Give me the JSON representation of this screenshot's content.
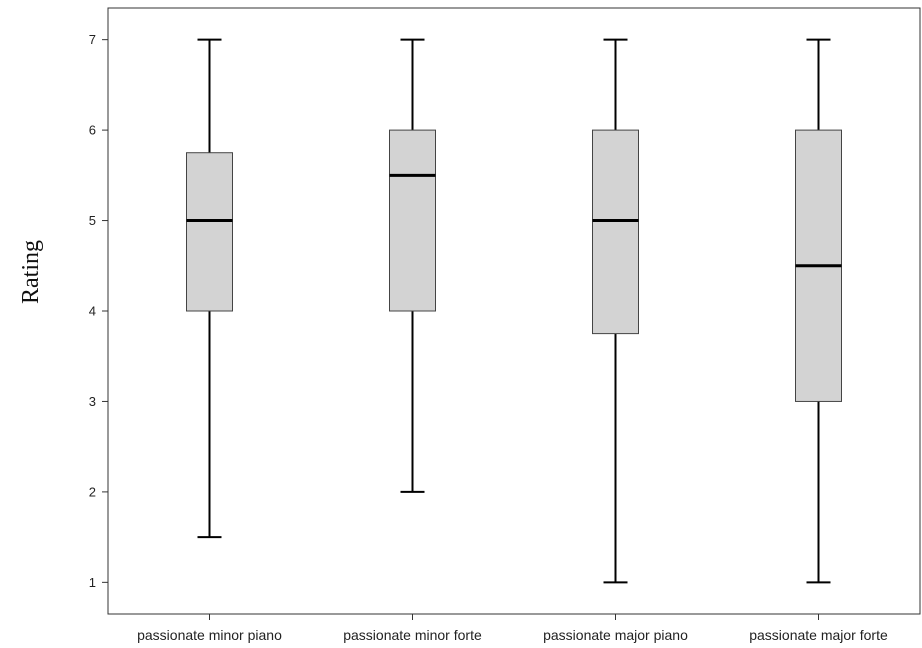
{
  "chart_data": {
    "type": "boxplot",
    "ylabel": "Rating",
    "xlabel": "",
    "ylim": [
      0.65,
      7.35
    ],
    "yticks": [
      1,
      2,
      3,
      4,
      5,
      6,
      7
    ],
    "grid": false,
    "categories": [
      "passionate minor piano",
      "passionate minor forte",
      "passionate major piano",
      "passionate major forte"
    ],
    "boxes": [
      {
        "min": 1.5,
        "q1": 4.0,
        "median": 5.0,
        "q3": 5.75,
        "max": 7
      },
      {
        "min": 2.0,
        "q1": 4.0,
        "median": 5.5,
        "q3": 6.0,
        "max": 7
      },
      {
        "min": 1.0,
        "q1": 3.75,
        "median": 5.0,
        "q3": 6.0,
        "max": 7
      },
      {
        "min": 1.0,
        "q1": 3.0,
        "median": 4.5,
        "q3": 6.0,
        "max": 7
      }
    ],
    "colors": {
      "box_fill": "#d3d3d3",
      "stroke": "#000000",
      "axis": "#333333"
    }
  }
}
